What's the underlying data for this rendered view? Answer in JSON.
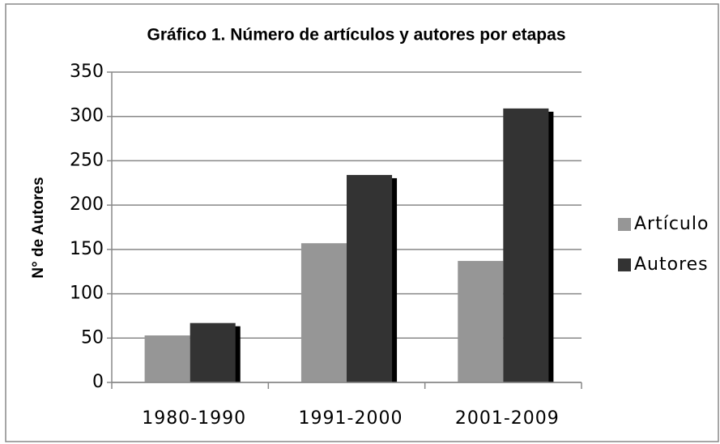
{
  "chart_data": {
    "type": "bar",
    "title": "Gráfico 1. Número de artículos y autores por etapas",
    "y_label": "N° de Autores",
    "categories": [
      "1980-1990",
      "1991-2000",
      "2001-2009"
    ],
    "series": [
      {
        "name": "Artículo",
        "color": "#969696",
        "values": [
          53,
          157,
          137
        ]
      },
      {
        "name": "Autores",
        "color": "#333333",
        "values": [
          67,
          234,
          309
        ]
      }
    ],
    "ylim": [
      0,
      350
    ],
    "yticks": [
      0,
      50,
      100,
      150,
      200,
      250,
      300,
      350
    ],
    "grid": true,
    "legend": "right"
  }
}
